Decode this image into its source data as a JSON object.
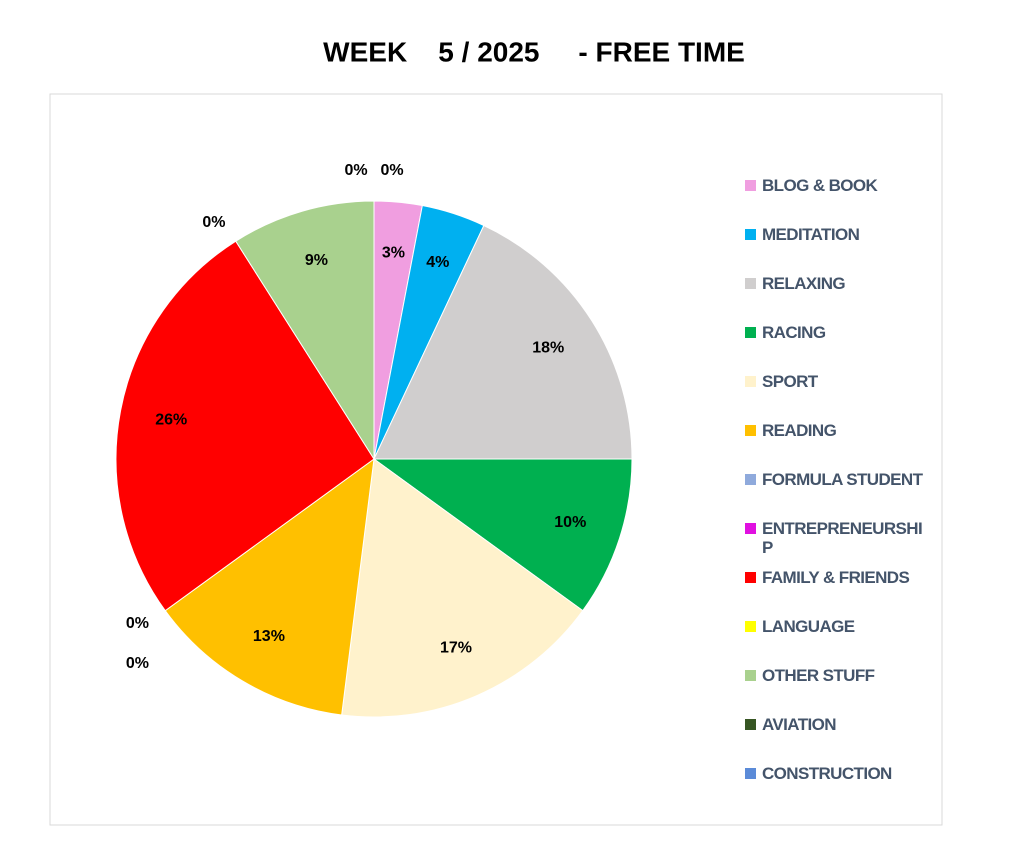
{
  "chart_data": {
    "type": "pie",
    "title": "WEEK    5 / 2025     - FREE TIME",
    "categories": [
      "BLOG & BOOK",
      "MEDITATION",
      "RELAXING",
      "RACING",
      "SPORT",
      "READING",
      "FORMULA STUDENT",
      "ENTREPRENEURSHIP",
      "FAMILY & FRIENDS",
      "LANGUAGE",
      "OTHER STUFF",
      "AVIATION",
      "CONSTRUCTION"
    ],
    "values": [
      3,
      4,
      18,
      10,
      17,
      13,
      0,
      0,
      26,
      0,
      9,
      0,
      0
    ],
    "value_labels": [
      "3%",
      "4%",
      "18%",
      "10%",
      "17%",
      "13%",
      "0%",
      "0%",
      "26%",
      "0%",
      "9%",
      "0%",
      "0%"
    ],
    "colors": [
      "#f09ee0",
      "#00b0f0",
      "#d0cece",
      "#00b050",
      "#fff2cc",
      "#ffc000",
      "#8faadc",
      "#e010e0",
      "#ff0000",
      "#ffff00",
      "#a9d18e",
      "#375623",
      "#5b8bd8"
    ],
    "legend": "right"
  }
}
